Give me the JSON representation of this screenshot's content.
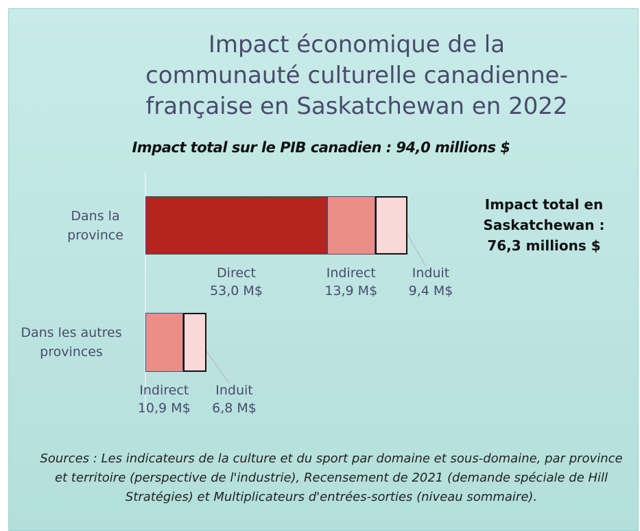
{
  "chart_data": {
    "type": "stacked_bar_horizontal",
    "title": "Impact économique de la communauté culturelle canadienne-française en Saskatchewan en 2022",
    "subtitle": "Impact total sur le PIB canadien : 94,0 millions $",
    "annotation": "Impact total en Saskatchewan : 76,3 millions $",
    "source": "Sources : Les indicateurs de la culture et du sport par domaine et sous-domaine, par province et territoire (perspective de l'industrie), Recensement de 2021 (demande spéciale de Hill Stratégies) et Multiplicateurs d'entrées-sorties (niveau sommaire).",
    "categories": [
      "Dans la province",
      "Dans les autres provinces"
    ],
    "series": [
      {
        "name": "Direct",
        "color": "#b5241f",
        "values": [
          53.0,
          null
        ],
        "value_labels": [
          "53,0 M$",
          null
        ]
      },
      {
        "name": "Indirect",
        "color": "#ec8e88",
        "values": [
          13.9,
          10.9
        ],
        "value_labels": [
          "13,9 M$",
          "10,9 M$"
        ]
      },
      {
        "name": "Induit",
        "color": "#f8d9d8",
        "values": [
          9.4,
          6.8
        ],
        "value_labels": [
          "9,4 M$",
          "6,8 M$"
        ]
      }
    ]
  }
}
